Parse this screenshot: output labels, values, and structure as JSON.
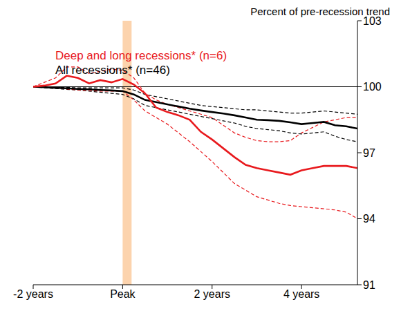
{
  "chart_data": {
    "type": "line",
    "title": "Percent of pre-recession trend",
    "x": [
      -8,
      -7,
      -6,
      -5,
      -4,
      -3,
      -2,
      -1,
      0,
      1,
      2,
      3,
      4,
      5,
      6,
      7,
      8,
      9,
      10,
      11,
      12,
      13,
      14,
      15,
      16,
      17,
      18,
      19,
      20,
      21
    ],
    "xlim": [
      -8,
      21
    ],
    "xticks": [
      {
        "value": -8,
        "label": "-2 years"
      },
      {
        "value": 0,
        "label": "Peak"
      },
      {
        "value": 8,
        "label": "2 years"
      },
      {
        "value": 16,
        "label": "4 years"
      }
    ],
    "ylim": [
      91,
      103
    ],
    "yticks": [
      91,
      94,
      97,
      100,
      103
    ],
    "grid": false,
    "legend": "top-left",
    "hline": 100,
    "recession_band": {
      "x": [
        0,
        0.8
      ],
      "color": "#fcd3ad"
    },
    "series": [
      {
        "name": "Deep and long recessions* (n=6)",
        "color": "#e8191d",
        "values": [
          100,
          100.05,
          100.15,
          100.5,
          100.4,
          100.15,
          100.3,
          100.2,
          100.35,
          100.1,
          99.7,
          99.05,
          98.85,
          98.7,
          98.5,
          97.95,
          97.6,
          97.2,
          96.8,
          96.45,
          96.3,
          96.2,
          96.1,
          96.0,
          96.2,
          96.3,
          96.4,
          96.4,
          96.4,
          96.3
        ],
        "upper": [
          100,
          100.2,
          100.4,
          100.9,
          100.9,
          100.6,
          100.7,
          100.8,
          100.75,
          100.4,
          99.7,
          99.4,
          99.2,
          99.05,
          98.9,
          98.75,
          98.6,
          98.25,
          97.9,
          97.7,
          97.55,
          97.5,
          97.5,
          97.55,
          97.9,
          98.15,
          98.4,
          98.5,
          98.6,
          98.6
        ],
        "lower": [
          100,
          99.98,
          99.95,
          99.9,
          99.85,
          99.82,
          99.8,
          99.8,
          99.8,
          99.4,
          98.9,
          98.6,
          98.3,
          97.9,
          97.5,
          97.05,
          96.6,
          96.1,
          95.6,
          95.3,
          95.0,
          94.85,
          94.7,
          94.6,
          94.55,
          94.5,
          94.45,
          94.4,
          94.3,
          94.0
        ]
      },
      {
        "name": "All recessions* (n=46)",
        "color": "#000000",
        "values": [
          100,
          99.98,
          99.95,
          99.93,
          99.9,
          99.88,
          99.85,
          99.83,
          99.8,
          99.65,
          99.4,
          99.3,
          99.2,
          99.1,
          99.0,
          98.92,
          98.85,
          98.78,
          98.7,
          98.6,
          98.5,
          98.48,
          98.45,
          98.38,
          98.3,
          98.35,
          98.4,
          98.25,
          98.2,
          98.1
        ],
        "upper": [
          100,
          100,
          99.98,
          99.97,
          99.95,
          99.95,
          99.95,
          99.95,
          99.95,
          99.85,
          99.65,
          99.55,
          99.45,
          99.35,
          99.25,
          99.15,
          99.1,
          99.05,
          99.0,
          98.95,
          98.95,
          98.9,
          98.85,
          98.8,
          98.8,
          98.85,
          98.9,
          98.85,
          98.8,
          98.75
        ],
        "lower": [
          100,
          99.95,
          99.92,
          99.88,
          99.85,
          99.8,
          99.75,
          99.7,
          99.65,
          99.45,
          99.15,
          99.05,
          98.95,
          98.85,
          98.75,
          98.65,
          98.55,
          98.45,
          98.35,
          98.2,
          98.1,
          98.05,
          98.0,
          97.9,
          97.85,
          97.9,
          97.95,
          97.75,
          97.6,
          97.5
        ]
      }
    ]
  }
}
